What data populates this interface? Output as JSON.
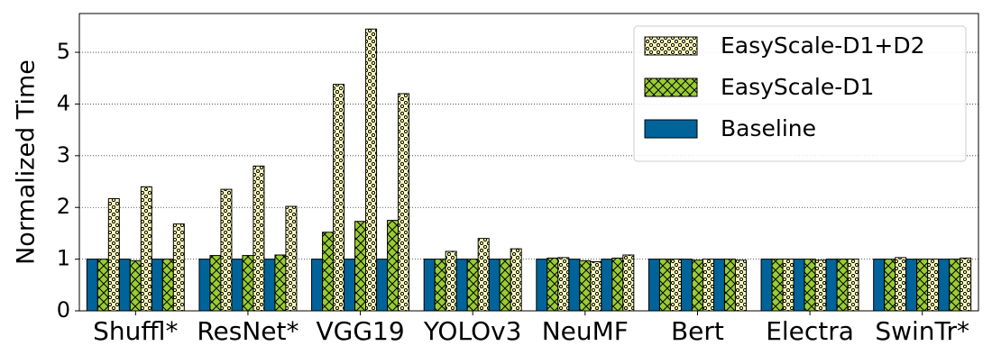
{
  "chart_data": {
    "type": "bar",
    "y_label": "Normalized Time",
    "categories": [
      null,
      "Shuffl*",
      null,
      null,
      "ResNet*",
      null,
      null,
      "VGG19",
      null,
      null,
      "YOLOv3",
      null,
      null,
      "NeuMF",
      null,
      null,
      "Bert",
      null,
      null,
      "Electra",
      null,
      null,
      "SwinTr*",
      null
    ],
    "series": [
      {
        "name": "Baseline",
        "color": "#00639a",
        "hatch": "none",
        "values": [
          1,
          1,
          1,
          1,
          1,
          1,
          1,
          1,
          1,
          1,
          1,
          1,
          1,
          1,
          1,
          1,
          1,
          1,
          1,
          1,
          1,
          1,
          1,
          1
        ]
      },
      {
        "name": "EasyScale-D1",
        "color": "#99cc33",
        "hatch": "cross",
        "values": [
          1.0,
          0.97,
          1.0,
          1.07,
          1.07,
          1.08,
          1.52,
          1.73,
          1.75,
          1.0,
          1.0,
          1.0,
          1.02,
          0.97,
          1.02,
          1.0,
          0.98,
          1.0,
          1.0,
          1.0,
          1.0,
          1.0,
          1.0,
          1.0
        ]
      },
      {
        "name": "EasyScale-D1+D2",
        "color": "#ffffc0",
        "hatch": "dots",
        "values": [
          2.17,
          2.4,
          1.68,
          2.35,
          2.8,
          2.02,
          4.38,
          5.45,
          4.2,
          1.15,
          1.4,
          1.2,
          1.03,
          0.95,
          1.08,
          1.0,
          1.0,
          0.98,
          1.0,
          0.98,
          1.0,
          1.03,
          1.0,
          1.02
        ]
      }
    ],
    "ylim": [
      0,
      5.75
    ],
    "yticks": [
      0,
      1,
      2,
      3,
      4,
      5
    ],
    "grid": true,
    "legend": "upper right"
  }
}
